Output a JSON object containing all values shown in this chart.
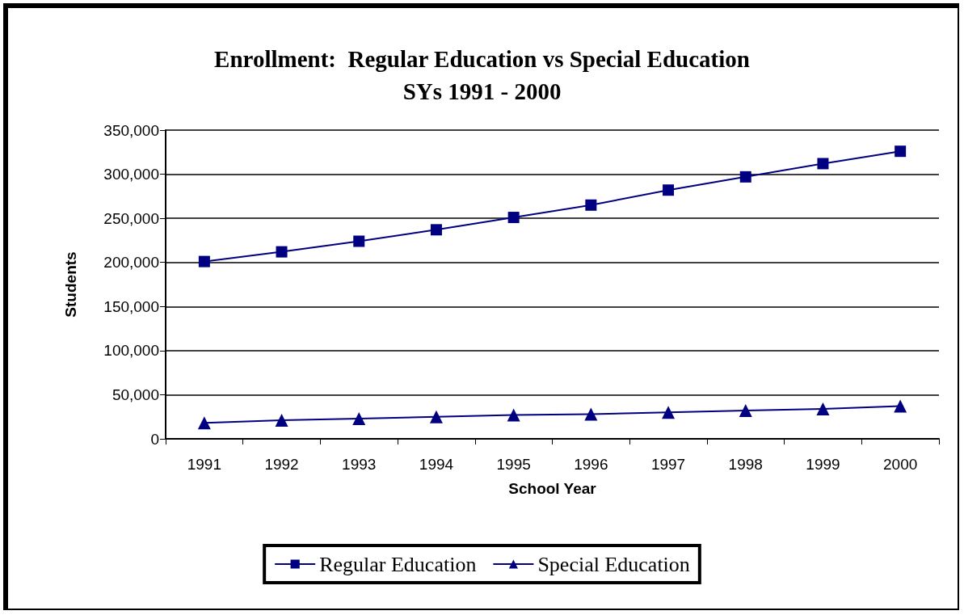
{
  "chart_data": {
    "type": "line",
    "title": "Enrollment:  Regular Education vs Special Education\nSYs 1991 - 2000",
    "xlabel": "School Year",
    "ylabel": "Students",
    "categories": [
      "1991",
      "1992",
      "1993",
      "1994",
      "1995",
      "1996",
      "1997",
      "1998",
      "1999",
      "2000"
    ],
    "series": [
      {
        "name": "Regular Education",
        "color": "#000080",
        "marker": "square",
        "values": [
          201000,
          212000,
          224000,
          237000,
          251000,
          265000,
          282000,
          297000,
          312000,
          326000
        ]
      },
      {
        "name": "Special Education",
        "color": "#000080",
        "marker": "triangle",
        "values": [
          18000,
          21000,
          23000,
          25000,
          27000,
          28000,
          30000,
          32000,
          34000,
          37000
        ]
      }
    ],
    "ylim": [
      0,
      350000
    ],
    "yticks": [
      0,
      {
        "value": 50000,
        "label": "50,000"
      },
      {
        "value": 100000,
        "label": "100,000"
      },
      {
        "value": 150000,
        "label": "150,000"
      },
      {
        "value": 200000,
        "label": "200,000"
      },
      {
        "value": 250000,
        "label": "250,000"
      },
      {
        "value": 300000,
        "label": "300,000"
      },
      {
        "value": 350000,
        "label": "350,000"
      }
    ],
    "grid": "y",
    "legend": "bottom",
    "line_style": "solid"
  }
}
